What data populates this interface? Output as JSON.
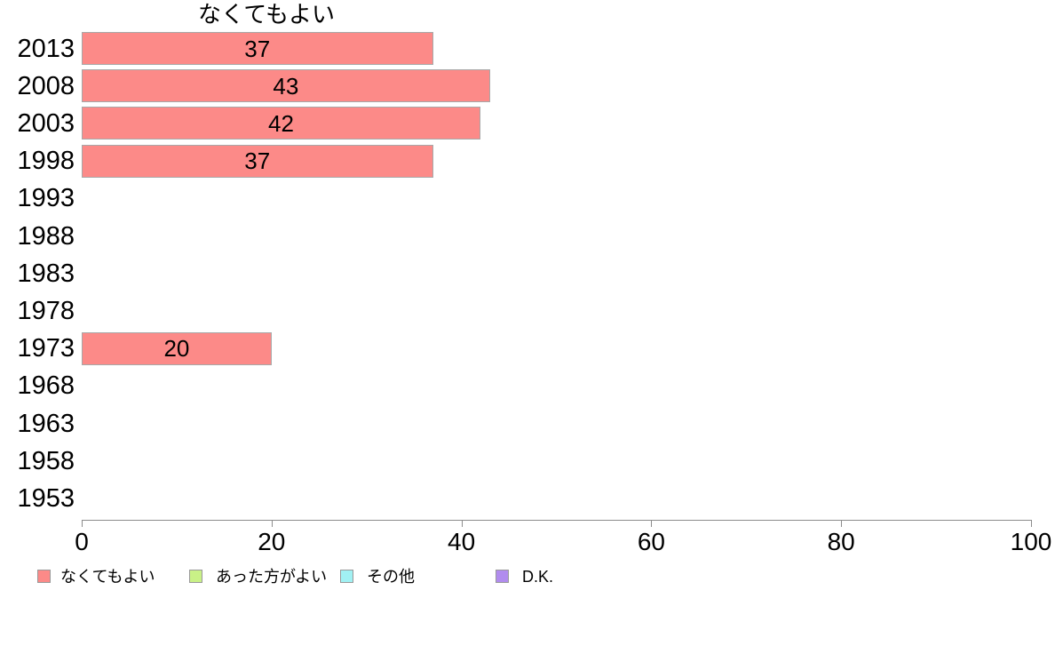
{
  "chart_data": {
    "type": "bar",
    "orientation": "horizontal",
    "title": "なくてもよい",
    "categories": [
      "2013",
      "2008",
      "2003",
      "1998",
      "1993",
      "1988",
      "1983",
      "1978",
      "1973",
      "1968",
      "1963",
      "1958",
      "1953"
    ],
    "series": [
      {
        "name": "なくてもよい",
        "color": "#FC8A88",
        "values": [
          37,
          43,
          42,
          37,
          null,
          null,
          null,
          null,
          20,
          null,
          null,
          null,
          null
        ]
      }
    ],
    "xlabel": "",
    "ylabel": "",
    "xlim": [
      0,
      100
    ],
    "x_ticks": [
      0,
      20,
      40,
      60,
      80,
      100
    ],
    "grid": false,
    "bar_labels_shown": true,
    "legend_position": "bottom",
    "legend": [
      {
        "label": "なくてもよい",
        "color": "#FC8A88"
      },
      {
        "label": "あった方がよい",
        "color": "#C9F187"
      },
      {
        "label": "その他",
        "color": "#A1F1F3"
      },
      {
        "label": "D.K.",
        "color": "#B18CEE"
      }
    ],
    "colors": {
      "bar_border": "#A8A8A8",
      "axis": "#8C8C8C",
      "text": "#000000",
      "background": "#FFFFFF"
    }
  }
}
